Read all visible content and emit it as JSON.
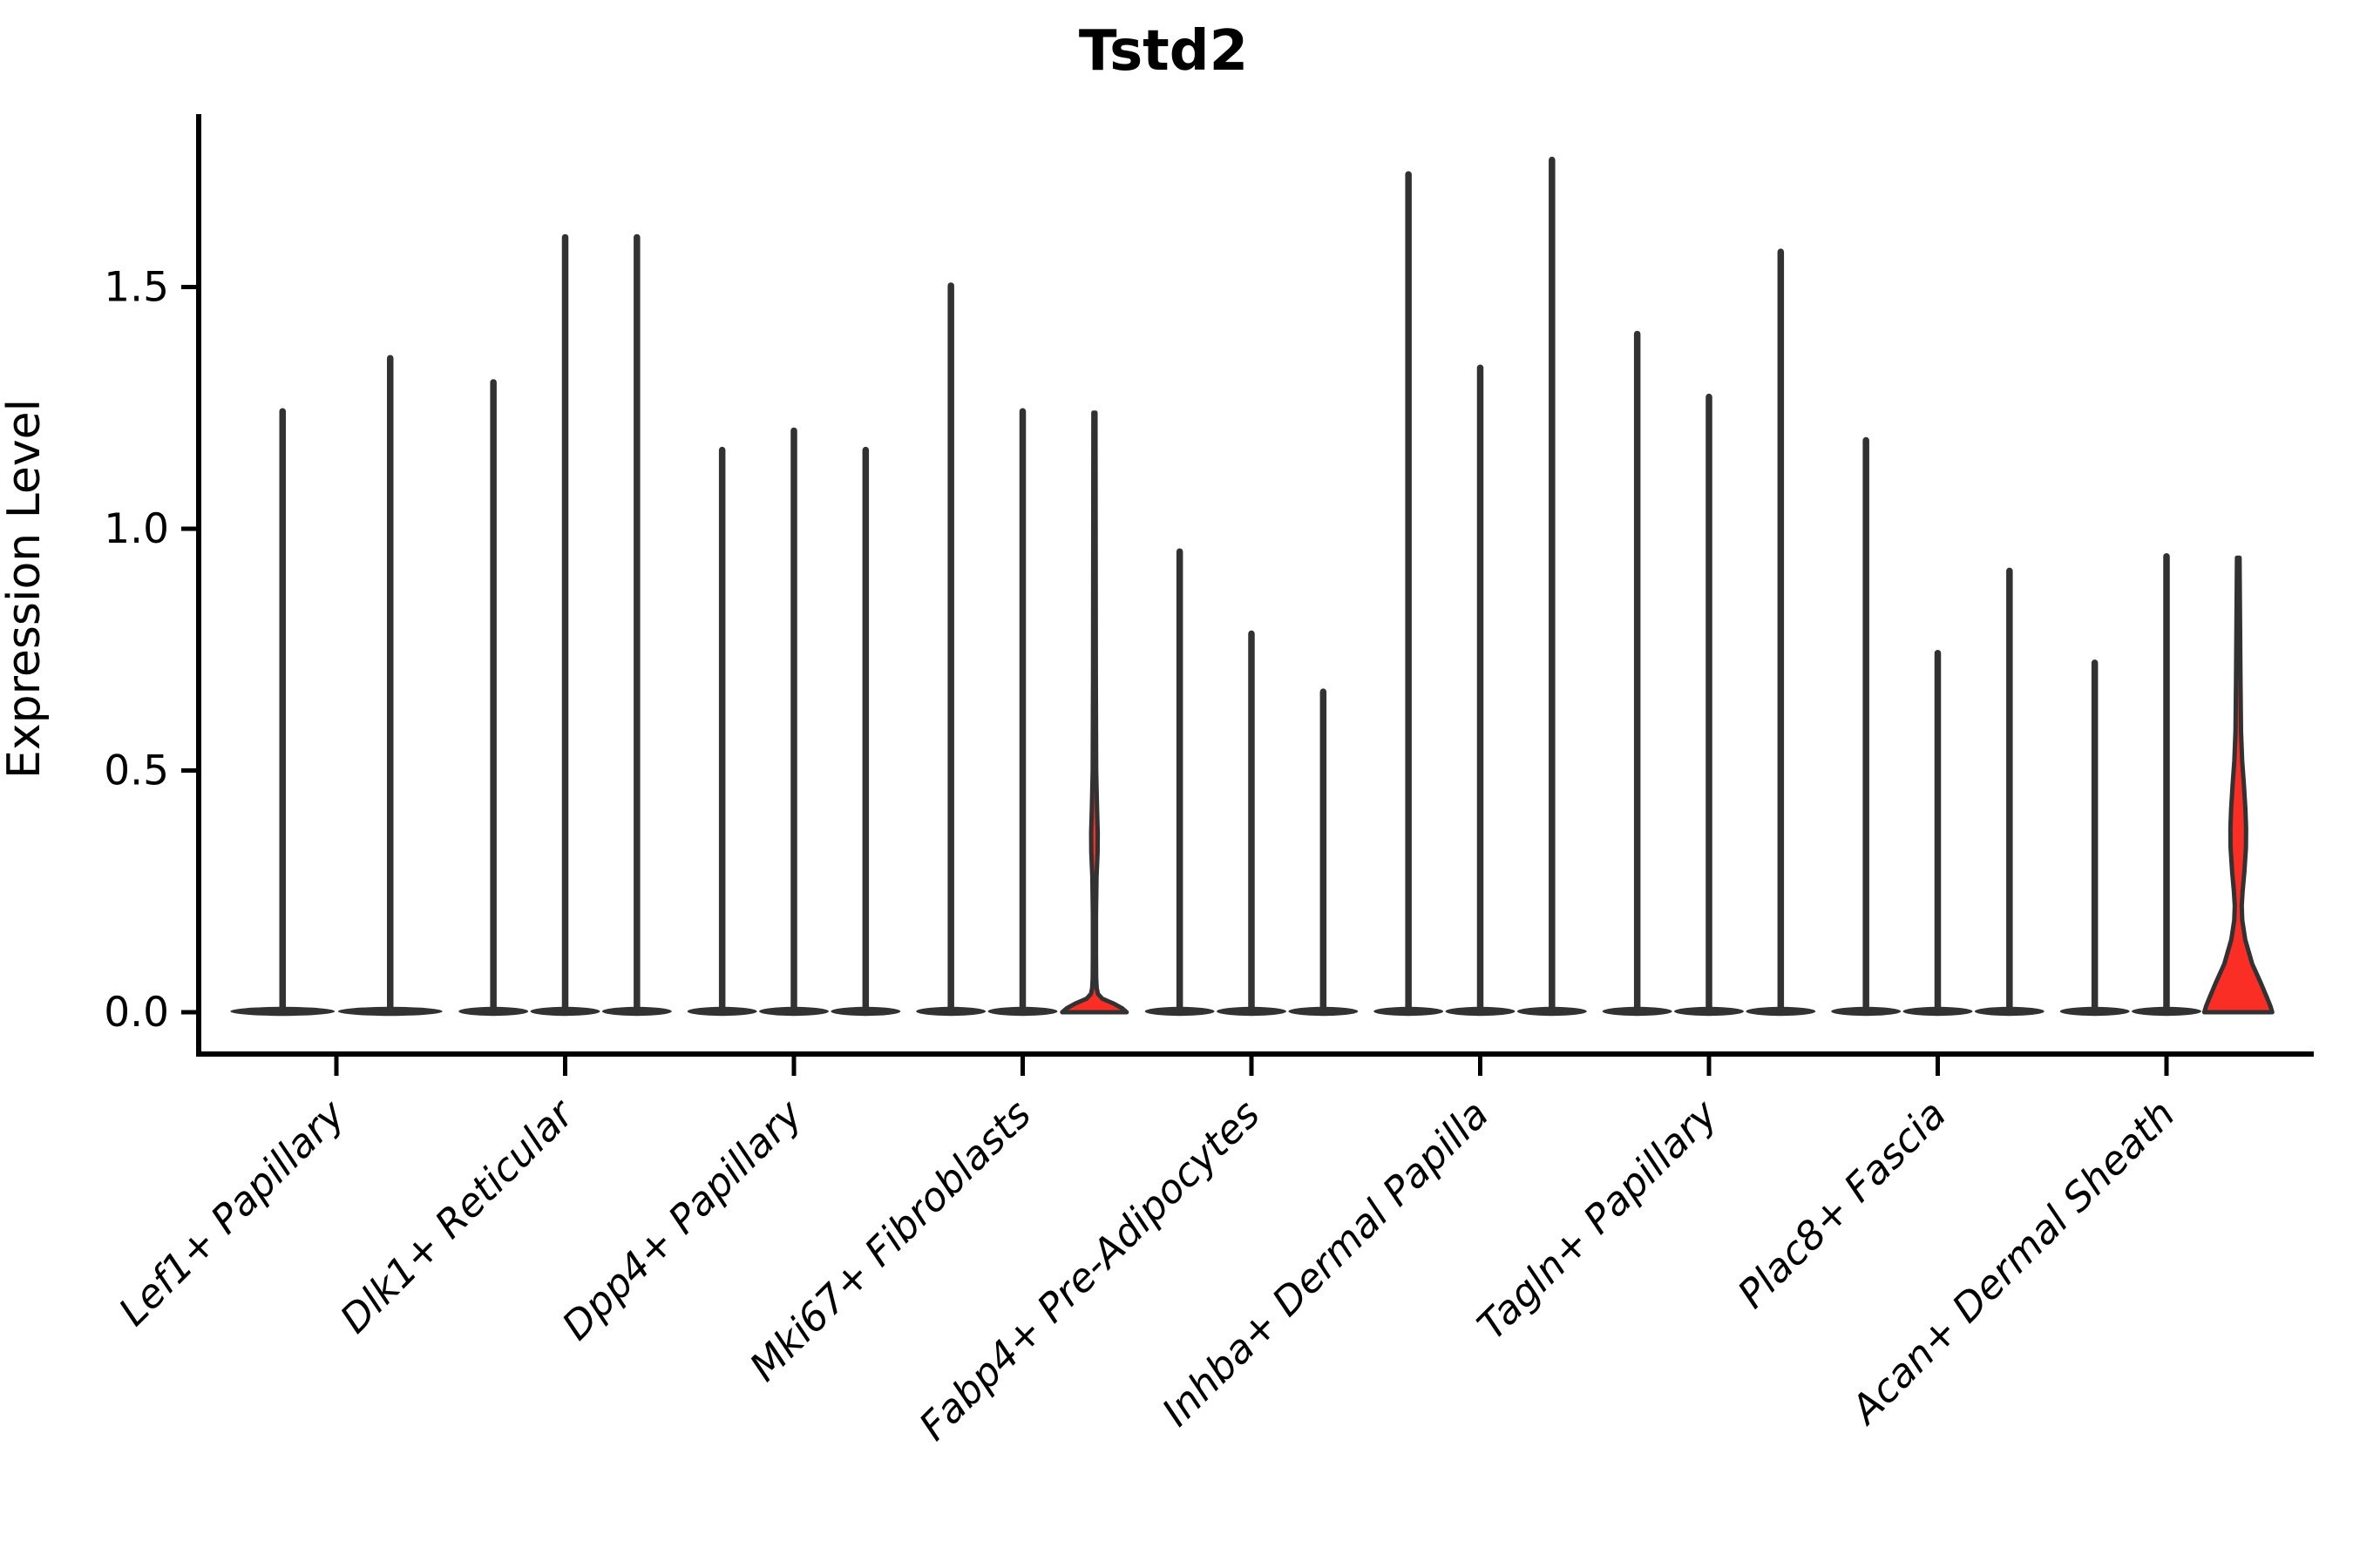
{
  "chart_data": {
    "type": "violin",
    "title": "Tstd2",
    "ylabel": "Expression Level",
    "xlabel": "",
    "yticks": [
      0.0,
      0.5,
      1.0,
      1.5
    ],
    "ylim": [
      -0.09,
      1.86
    ],
    "legend": "none",
    "grid": false,
    "colors": {
      "stroke": "#323232",
      "highlight_fill": "#fb2e25",
      "background": "#ffffff"
    },
    "categories": [
      "Lef1+ Papillary",
      "Dlk1+ Reticular",
      "Dpp4+ Papillary",
      "Mki67+ Fibroblasts",
      "Fabp4+ Pre-Adipocytes",
      "Inhba+ Dermal Papilla",
      "Tagln+ Papillary",
      "Plac8+ Fascia",
      "Acan+ Dermal Sheath"
    ],
    "groups": [
      {
        "category": "Lef1+ Papillary",
        "violins": [
          {
            "max": 1.25
          },
          {
            "max": 1.36
          }
        ]
      },
      {
        "category": "Dlk1+ Reticular",
        "violins": [
          {
            "max": 1.31
          },
          {
            "max": 1.61
          },
          {
            "max": 1.61
          }
        ]
      },
      {
        "category": "Dpp4+ Papillary",
        "violins": [
          {
            "max": 1.17
          },
          {
            "max": 1.21
          },
          {
            "max": 1.17
          }
        ]
      },
      {
        "category": "Mki67+ Fibroblasts",
        "violins": [
          {
            "max": 1.51
          },
          {
            "max": 1.25
          },
          {
            "max": 1.24,
            "fill": "red",
            "profile": [
              [
                1.24,
                1.2
              ],
              [
                0.7,
                1.6
              ],
              [
                0.5,
                2.0
              ],
              [
                0.42,
                3.0
              ],
              [
                0.37,
                3.8
              ],
              [
                0.33,
                3.6
              ],
              [
                0.28,
                2.4
              ],
              [
                0.2,
                1.8
              ],
              [
                0.12,
                1.8
              ],
              [
                0.07,
                2.0
              ],
              [
                0.05,
                2.6
              ],
              [
                0.038,
                4.0
              ],
              [
                0.028,
                9.0
              ],
              [
                0.018,
                22.0
              ],
              [
                0.008,
                32.0
              ],
              [
                0.0,
                37.0
              ]
            ]
          }
        ]
      },
      {
        "category": "Fabp4+ Pre-Adipocytes",
        "violins": [
          {
            "max": 0.96
          },
          {
            "max": 0.79
          },
          {
            "max": 0.67
          }
        ]
      },
      {
        "category": "Inhba+ Dermal Papilla",
        "violins": [
          {
            "max": 1.74
          },
          {
            "max": 1.34
          },
          {
            "max": 1.77
          }
        ]
      },
      {
        "category": "Tagln+ Papillary",
        "violins": [
          {
            "max": 1.41
          },
          {
            "max": 1.28
          },
          {
            "max": 1.58
          }
        ]
      },
      {
        "category": "Plac8+ Fascia",
        "violins": [
          {
            "max": 1.19
          },
          {
            "max": 0.75
          },
          {
            "max": 0.92
          }
        ]
      },
      {
        "category": "Acan+ Dermal Sheath",
        "violins": [
          {
            "max": 0.73
          },
          {
            "max": 0.95
          },
          {
            "max": 0.94,
            "fill": "red",
            "profile": [
              [
                0.94,
                1.5
              ],
              [
                0.82,
                2.0
              ],
              [
                0.68,
                2.6
              ],
              [
                0.58,
                3.2
              ],
              [
                0.52,
                4.5
              ],
              [
                0.47,
                6.5
              ],
              [
                0.42,
                8.2
              ],
              [
                0.38,
                9.0
              ],
              [
                0.34,
                8.8
              ],
              [
                0.29,
                7.0
              ],
              [
                0.25,
                5.0
              ],
              [
                0.22,
                4.0
              ],
              [
                0.19,
                4.6
              ],
              [
                0.15,
                8.0
              ],
              [
                0.1,
                16.0
              ],
              [
                0.06,
                26.0
              ],
              [
                0.03,
                33.0
              ],
              [
                0.012,
                37.0
              ],
              [
                0.0,
                39.0
              ]
            ]
          }
        ]
      }
    ]
  }
}
